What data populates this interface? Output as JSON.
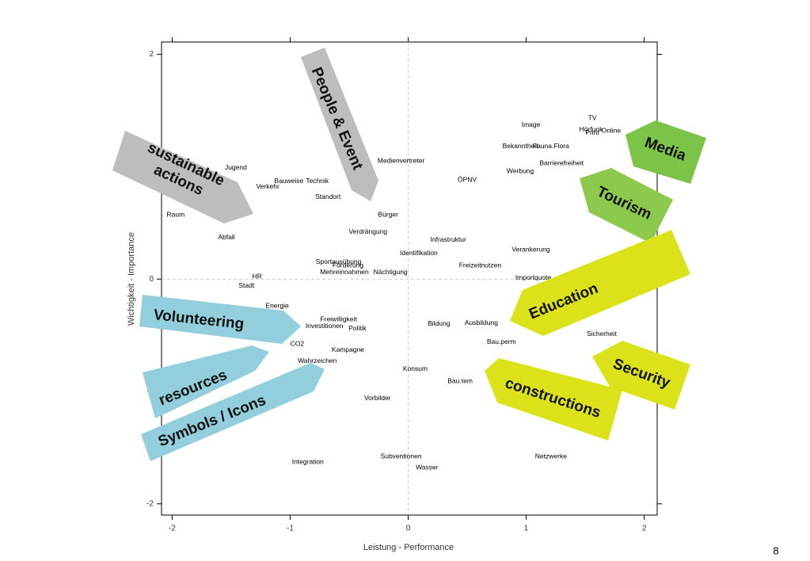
{
  "chart_data": {
    "type": "scatter",
    "x_label": "Leistung - Performance",
    "y_label": "Wichtigkeit - Importance",
    "xlim": [
      -2.09,
      2.11
    ],
    "ylim": [
      -2.1,
      2.11
    ],
    "xticks": [
      -2,
      -1,
      0,
      1,
      2
    ],
    "yticks": [
      -2,
      -1,
      0,
      1,
      2
    ],
    "zero_lines": true,
    "color": "#000000",
    "labels": [
      "Image",
      "TV",
      "Hörfunk",
      "Online",
      "Print",
      "Bekanntheit",
      "Fauna.Flora",
      "Barrierefreiheit",
      "Werbung",
      "ÖPNV",
      "Medienvertreter",
      "Jugend",
      "Bauweise",
      "Technik",
      "Verkehr",
      "Standort",
      "Raum",
      "Bürger",
      "Verdrängung",
      "Abfall",
      "Infrastruktur",
      "Identifikation",
      "Verankerung",
      "Sportausübung",
      "Förderung",
      "Freizeitnutzen",
      "Mehreinnahmen",
      "Nächtigung",
      "Importquote",
      "HR",
      "Stadt",
      "Energie",
      "Freiwilligkeit",
      "Investitionen",
      "Politik",
      "Bildung",
      "Ausbildung",
      "Sicherheit",
      "Bau.perm",
      "CO2",
      "Kampagne",
      "Wahrzeichen",
      "Konsum",
      "Bau.tem",
      "Vorbilder",
      "Subventionen",
      "Wasser",
      "Netzwerke",
      "Integration"
    ],
    "x": [
      1.04,
      1.56,
      1.55,
      1.72,
      1.56,
      0.95,
      1.21,
      1.3,
      0.95,
      0.5,
      -0.06,
      -1.46,
      -1.01,
      -0.77,
      -1.19,
      -0.68,
      -1.97,
      -0.17,
      -0.34,
      -1.54,
      0.34,
      0.09,
      1.04,
      -0.59,
      -0.51,
      0.61,
      -0.54,
      -0.15,
      1.06,
      -1.28,
      -1.37,
      -1.11,
      -0.59,
      -0.71,
      -0.43,
      0.26,
      0.62,
      1.64,
      0.79,
      -0.94,
      -0.51,
      -0.77,
      0.06,
      0.44,
      -0.26,
      -0.06,
      0.16,
      1.21,
      -0.85
    ],
    "y": [
      1.37,
      1.43,
      1.33,
      1.32,
      1.3,
      1.18,
      1.18,
      1.03,
      0.96,
      0.88,
      1.05,
      0.99,
      0.87,
      0.87,
      0.82,
      0.73,
      0.57,
      0.57,
      0.42,
      0.37,
      0.35,
      0.23,
      0.26,
      0.15,
      0.12,
      0.12,
      0.06,
      0.06,
      0.01,
      0.02,
      -0.06,
      -0.24,
      -0.36,
      -0.42,
      -0.44,
      -0.4,
      -0.39,
      -0.49,
      -0.56,
      -0.58,
      -0.63,
      -0.73,
      -0.8,
      -0.91,
      -1.06,
      -1.58,
      -1.68,
      -1.58,
      -1.63
    ],
    "annotations": [
      {
        "lines": [
          "People & Event"
        ],
        "color": "#bdbdbd"
      },
      {
        "lines": [
          "sustainable",
          "actions"
        ],
        "color": "#bdbdbd"
      },
      {
        "lines": [
          "Media"
        ],
        "color": "#7cc447"
      },
      {
        "lines": [
          "Tourism"
        ],
        "color": "#8dc94c"
      },
      {
        "lines": [
          "Education"
        ],
        "color": "#dbe219"
      },
      {
        "lines": [
          "Security"
        ],
        "color": "#dbe219"
      },
      {
        "lines": [
          "constructions"
        ],
        "color": "#dbe219"
      },
      {
        "lines": [
          "Volunteering"
        ],
        "color": "#92cedb"
      },
      {
        "lines": [
          "resources"
        ],
        "color": "#92cedb"
      },
      {
        "lines": [
          "Symbols / Icons"
        ],
        "color": "#92cedb"
      }
    ]
  },
  "page_number": "8"
}
